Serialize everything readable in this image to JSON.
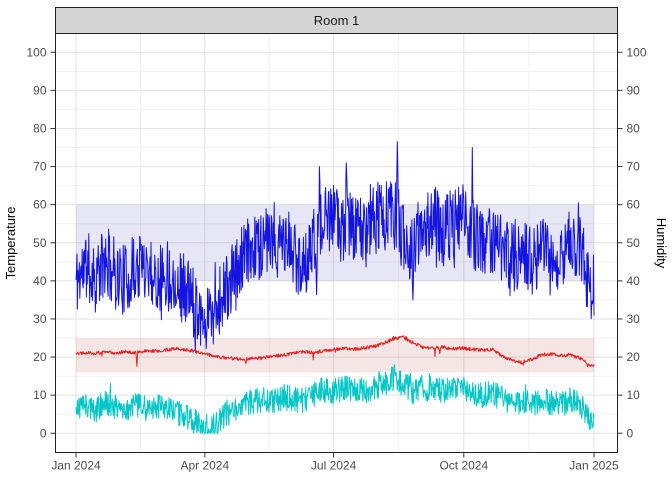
{
  "figure": {
    "strip_title": "Room 1",
    "left_axis_title": "Temperature",
    "right_axis_title": "Humidity"
  },
  "chart_data": {
    "type": "line",
    "title": "Room 1",
    "samples_per_day": 3,
    "style": {
      "panel_background": "#ffffff",
      "panel_border": "#1f1f1f",
      "strip_background": "#d5d5d5",
      "strip_border": "#1f1f1f",
      "grid_major": "#e2e2e2",
      "grid_minor": "#f0f0f0",
      "tick_mark_color": "#333333",
      "tick_text_color": "#4d4d4d"
    },
    "x_axis": {
      "tick_labels": [
        "Jan 2024",
        "Apr 2024",
        "Jul 2024",
        "Oct 2024",
        "Jan 2025"
      ],
      "tick_days": [
        0,
        91,
        182,
        274,
        366
      ],
      "minor_days": [
        45.5,
        136.5,
        228,
        320
      ],
      "domain_days": [
        -14.5,
        382.6
      ]
    },
    "y_left": {
      "title": "Temperature",
      "tick_values": [
        0,
        10,
        20,
        30,
        40,
        50,
        60,
        70,
        80,
        90,
        100
      ],
      "minor_values": [
        5,
        15,
        25,
        35,
        45,
        55,
        65,
        75,
        85,
        95
      ],
      "domain": [
        -5.05,
        104.93
      ]
    },
    "y_right": {
      "title": "Humidity",
      "tick_values": [
        0,
        10,
        20,
        30,
        40,
        50,
        60,
        70,
        80,
        90,
        100
      ]
    },
    "bands": [
      {
        "name": "humidity-comfort-band",
        "from": 40,
        "to": 60,
        "color": "#3c3cb4",
        "opacity": 0.13,
        "day_from": 0,
        "day_to": 366
      },
      {
        "name": "temperature-comfort-band",
        "from": 16,
        "to": 25,
        "color": "#b43c3c",
        "opacity": 0.13,
        "day_from": 0,
        "day_to": 366
      }
    ],
    "series": [
      {
        "name": "humidity-blue",
        "color": "#1414e0",
        "axis": "right",
        "noise": 9.5,
        "seed": 11,
        "spike": {
          "prob": 0.05,
          "down": 7,
          "up": 7
        },
        "day_start": 0,
        "day_end": 366,
        "weekly_values": [
          40,
          44,
          41,
          45,
          42,
          40,
          43,
          45,
          41,
          42,
          40,
          38,
          34,
          31,
          33,
          37,
          41,
          46,
          49,
          50,
          48,
          50,
          47,
          44,
          50,
          55,
          56,
          54,
          55,
          52,
          56,
          57,
          58,
          52,
          48,
          55,
          56,
          53,
          55,
          57,
          52,
          50,
          51,
          49,
          46,
          48,
          45,
          47,
          45,
          46,
          50,
          48,
          38
        ],
        "extremes": [
          {
            "day": 91,
            "value": 25
          },
          {
            "day": 172,
            "value": 70
          },
          {
            "day": 191,
            "value": 71
          },
          {
            "day": 227,
            "value": 76.5
          },
          {
            "day": 238,
            "value": 35
          },
          {
            "day": 280,
            "value": 75
          },
          {
            "day": 355,
            "value": 60.5
          },
          {
            "day": 365,
            "value": 34
          }
        ]
      },
      {
        "name": "outdoor-temperature-cyan",
        "color": "#00c7c7",
        "axis": "left",
        "noise": 3.4,
        "seed": 33,
        "clamp_min": 0,
        "spike": {
          "prob": 0.03,
          "down": 2.5,
          "up": 2.5
        },
        "day_start": 0,
        "day_end": 366,
        "weekly_values": [
          6.5,
          7.5,
          6.0,
          8.0,
          7.0,
          6.0,
          7.5,
          6.5,
          7.0,
          6.0,
          5.5,
          4.5,
          3.0,
          1.5,
          2.0,
          4.5,
          6.0,
          7.5,
          8.5,
          9.0,
          8.5,
          9.5,
          9.0,
          8.5,
          10.0,
          11.5,
          11.0,
          11.5,
          12.0,
          11.0,
          12.0,
          13.0,
          14.5,
          13.0,
          11.0,
          12.0,
          11.5,
          11.0,
          11.5,
          12.0,
          10.5,
          10.0,
          10.5,
          9.0,
          8.0,
          7.5,
          8.0,
          8.5,
          8.0,
          7.5,
          9.0,
          7.0,
          3.5
        ],
        "extremes": [
          {
            "day": 91,
            "value": 0
          },
          {
            "day": 94,
            "value": 0.5
          },
          {
            "day": 225,
            "value": 18
          },
          {
            "day": 365,
            "value": 2.5
          }
        ]
      },
      {
        "name": "room-temperature-red",
        "color": "#ed1c1c",
        "axis": "left",
        "noise": 0.45,
        "seed": 22,
        "spike": {
          "prob": 0.012,
          "down": 2.6,
          "up": 0.6
        },
        "day_start": 0,
        "day_end": 366,
        "weekly_values": [
          21.0,
          21.2,
          21.0,
          21.3,
          21.1,
          21.4,
          21.2,
          21.5,
          21.6,
          21.8,
          22.3,
          22.0,
          21.5,
          20.8,
          20.2,
          19.8,
          19.6,
          19.5,
          19.6,
          19.8,
          20.3,
          20.6,
          21.0,
          21.4,
          21.2,
          21.6,
          22.0,
          22.3,
          22.0,
          22.4,
          22.8,
          23.5,
          24.8,
          25.3,
          23.8,
          22.6,
          22.3,
          22.6,
          22.2,
          22.4,
          22.0,
          21.8,
          22.0,
          20.3,
          19.2,
          18.6,
          19.4,
          20.6,
          20.8,
          20.4,
          20.6,
          19.5,
          17.8
        ],
        "extremes": [
          {
            "day": 43,
            "value": 17.6
          },
          {
            "day": 120,
            "value": 18.3
          },
          {
            "day": 257,
            "value": 20.9
          },
          {
            "day": 316,
            "value": 17.9
          },
          {
            "day": 365,
            "value": 17.7
          }
        ]
      }
    ]
  }
}
